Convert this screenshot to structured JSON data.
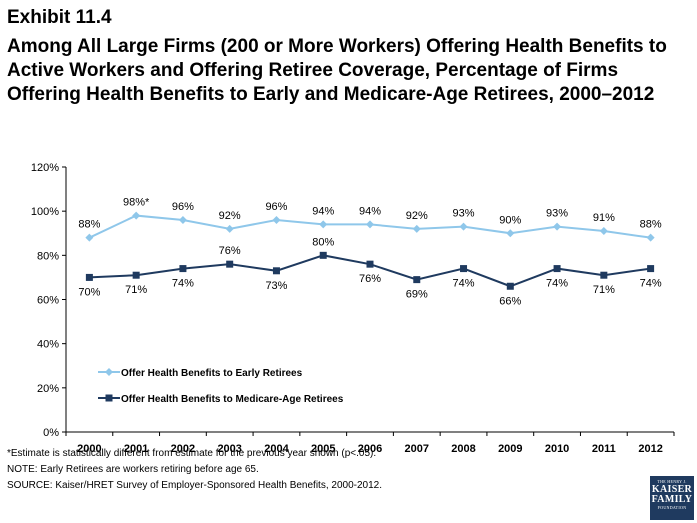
{
  "header": {
    "exhibit": "Exhibit 11.4",
    "title": "Among All Large Firms (200 or More Workers) Offering Health Benefits to Active Workers and Offering Retiree Coverage, Percentage of Firms Offering Health Benefits to Early and Medicare-Age Retirees, 2000–2012"
  },
  "chart_data": {
    "type": "line",
    "categories": [
      "2000",
      "2001",
      "2002",
      "2003",
      "2004",
      "2005",
      "2006",
      "2007",
      "2008",
      "2009",
      "2010",
      "2011",
      "2012"
    ],
    "ylim": [
      0,
      120
    ],
    "yticks": [
      "0%",
      "20%",
      "40%",
      "60%",
      "80%",
      "100%",
      "120%"
    ],
    "grid": false,
    "legend_position": "bottom-left",
    "series": [
      {
        "name": "Offer Health Benefits to Early Retirees",
        "color": "#8fc7ea",
        "marker": "diamond",
        "values": [
          88,
          98,
          96,
          92,
          96,
          94,
          94,
          92,
          93,
          90,
          93,
          91,
          88
        ],
        "labels": [
          "88%",
          "98%*",
          "96%",
          "92%",
          "96%",
          "94%",
          "94%",
          "92%",
          "93%",
          "90%",
          "93%",
          "91%",
          "88%"
        ]
      },
      {
        "name": "Offer Health Benefits to Medicare-Age Retirees",
        "color": "#1f3a5f",
        "marker": "square",
        "values": [
          70,
          71,
          74,
          76,
          73,
          80,
          76,
          69,
          74,
          66,
          74,
          71,
          74
        ],
        "labels": [
          "70%",
          "71%",
          "74%",
          "76%",
          "73%",
          "80%",
          "76%",
          "69%",
          "74%",
          "66%",
          "74%",
          "71%",
          "74%"
        ]
      }
    ]
  },
  "footnotes": {
    "star": "*Estimate is statistically different from estimate for the previous year shown    (p<.05).",
    "note": "NOTE: Early Retirees are workers retiring before age 65.",
    "source": "SOURCE:  Kaiser/HRET Survey of Employer-Sponsored Health Benefits, 2000-2012."
  },
  "logo": {
    "line1": "THE HENRY J.",
    "line2": "KAISER",
    "line3": "FAMILY",
    "line4": "FOUNDATION"
  }
}
